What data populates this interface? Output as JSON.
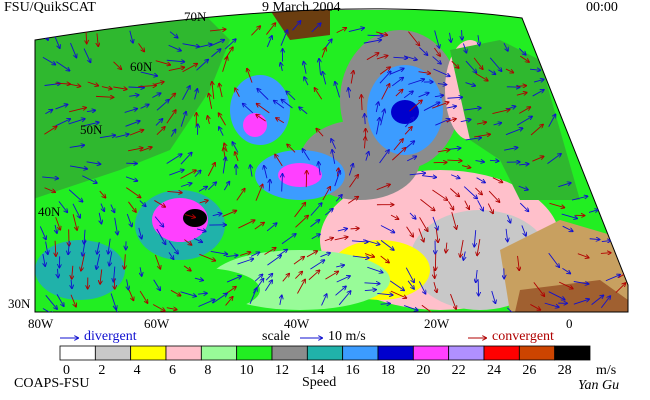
{
  "header": {
    "title": "FSU/QuikSCAT",
    "date": "9 March 2004",
    "time": "00:00"
  },
  "map": {
    "latitude_labels": [
      "70N",
      "60N",
      "50N",
      "40N",
      "30N"
    ],
    "longitude_labels": [
      "80W",
      "60W",
      "40W",
      "20W",
      "0"
    ]
  },
  "legend": {
    "divergent": "divergent",
    "scale": "scale",
    "scale_value": "10 m/s",
    "convergent": "convergent"
  },
  "colorbar": {
    "title": "Speed",
    "unit": "m/s",
    "ticks": [
      0,
      2,
      4,
      6,
      8,
      10,
      12,
      14,
      16,
      18,
      20,
      22,
      24,
      26,
      28
    ],
    "colors": [
      "#ffffff",
      "#c8c8c8",
      "#ffff00",
      "#ffc0cb",
      "#98fb98",
      "#22ee22",
      "#8c8c8c",
      "#20b2aa",
      "#3c9cff",
      "#0000cd",
      "#ff40ff",
      "#b090ff",
      "#ff0000",
      "#cc4400",
      "#000000"
    ]
  },
  "footer": {
    "credit": "COAPS-FSU",
    "signature": "Yan Gu"
  }
}
